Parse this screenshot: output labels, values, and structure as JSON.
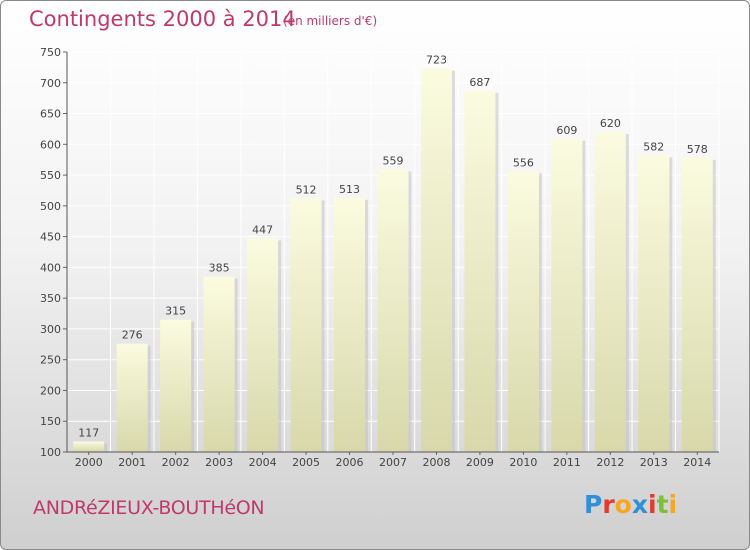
{
  "header": {
    "title": "Contingents 2000 à 2014",
    "subtitle": "(en milliers d'€)"
  },
  "footer": {
    "place": "ANDRéZIEUX-BOUTHéON",
    "logo_letters": [
      "P",
      "r",
      "o",
      "x",
      "i",
      "t",
      "i"
    ],
    "logo_colors": [
      "#2f8fd8",
      "#e23b2e",
      "#f5a623",
      "#2f8fd8",
      "#e23b2e",
      "#7bbf3a",
      "#f5a623"
    ]
  },
  "chart_data": {
    "type": "bar",
    "categories": [
      "2000",
      "2001",
      "2002",
      "2003",
      "2004",
      "2005",
      "2006",
      "2007",
      "2008",
      "2009",
      "2010",
      "2011",
      "2012",
      "2013",
      "2014"
    ],
    "values": [
      117,
      276,
      315,
      385,
      447,
      512,
      513,
      559,
      723,
      687,
      556,
      609,
      620,
      582,
      578
    ],
    "ylim": [
      100,
      750
    ],
    "yticks": [
      100,
      150,
      200,
      250,
      300,
      350,
      400,
      450,
      500,
      550,
      600,
      650,
      700,
      750
    ],
    "grid": true,
    "bar_color": "#f7f7c9",
    "label_color": "#444444"
  }
}
